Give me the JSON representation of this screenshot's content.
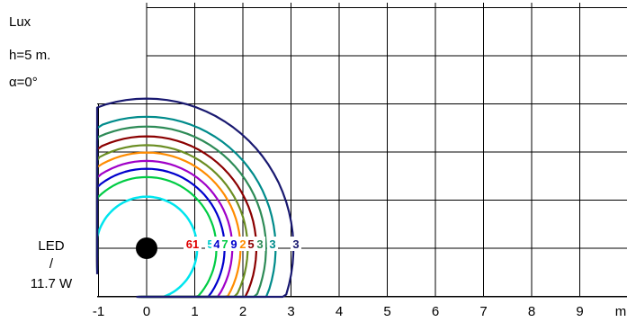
{
  "chart_data": {
    "type": "contour",
    "info": [
      "Lux",
      "h=5 m.",
      "α=0°"
    ],
    "lamp_label": [
      "LED",
      "/",
      "11.7 W"
    ],
    "x_ticks": [
      "-1",
      "0",
      "1",
      "2",
      "3",
      "4",
      "5",
      "6",
      "7",
      "8",
      "9"
    ],
    "x_unit": "m",
    "xlim": [
      -1,
      9.5
    ],
    "ylim": [
      -1,
      5
    ],
    "lamp_position": [
      0,
      0
    ],
    "grid": true,
    "contour_label_text": [
      "61",
      "5",
      "4",
      "7",
      "9",
      "2",
      "5",
      "3",
      "3",
      "3"
    ],
    "contours": [
      {
        "radius": 1.05,
        "color": "#00e5ee"
      },
      {
        "radius": 1.45,
        "color": "#00cc44"
      },
      {
        "radius": 1.62,
        "color": "#0000cd"
      },
      {
        "radius": 1.78,
        "color": "#a000c8"
      },
      {
        "radius": 1.95,
        "color": "#ff8c00"
      },
      {
        "radius": 2.1,
        "color": "#6b8e23"
      },
      {
        "radius": 2.28,
        "color": "#8b0000"
      },
      {
        "radius": 2.48,
        "color": "#2e8b57"
      },
      {
        "radius": 2.68,
        "color": "#008b8b"
      },
      {
        "radius": 3.05,
        "color": "#191970"
      }
    ]
  }
}
